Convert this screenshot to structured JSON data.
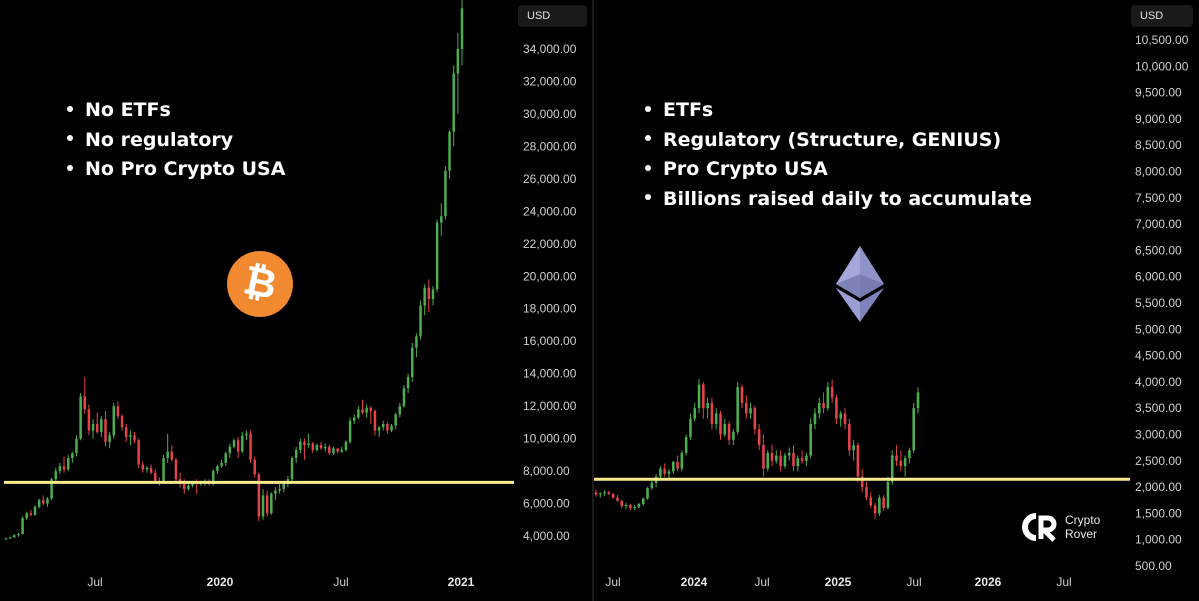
{
  "chart_data": [
    {
      "type": "candlestick",
      "name": "BTC",
      "currency": "USD",
      "yticks": [
        4000,
        6000,
        8000,
        10000,
        12000,
        14000,
        16000,
        18000,
        20000,
        22000,
        24000,
        26000,
        28000,
        30000,
        32000,
        34000
      ],
      "ytick_labels": [
        "4,000.00",
        "6,000.00",
        "8,000.00",
        "10,000.00",
        "12,000.00",
        "14,000.00",
        "16,000.00",
        "18,000.00",
        "20,000.00",
        "22,000.00",
        "24,000.00",
        "26,000.00",
        "28,000.00",
        "30,000.00",
        "32,000.00",
        "34,000.00"
      ],
      "ylim": [
        3000,
        36700
      ],
      "x_labels": [
        {
          "label": "Jul",
          "bold": false
        },
        {
          "label": "2020",
          "bold": true
        },
        {
          "label": "Jul",
          "bold": false
        },
        {
          "label": "2021",
          "bold": true
        }
      ],
      "horizontal_line": 7300,
      "candles": [
        [
          3800,
          3900,
          3750,
          3860
        ],
        [
          3860,
          3950,
          3800,
          3920
        ],
        [
          3920,
          4100,
          3880,
          4050
        ],
        [
          4050,
          4200,
          3950,
          4120
        ],
        [
          4120,
          5200,
          4100,
          5100
        ],
        [
          5100,
          5500,
          5000,
          5400
        ],
        [
          5400,
          5600,
          5200,
          5300
        ],
        [
          5300,
          5900,
          5250,
          5800
        ],
        [
          5800,
          6300,
          5700,
          6200
        ],
        [
          6200,
          6500,
          5900,
          6000
        ],
        [
          6000,
          6400,
          5800,
          6300
        ],
        [
          6300,
          7600,
          6200,
          7500
        ],
        [
          7500,
          8200,
          7300,
          8000
        ],
        [
          8000,
          8500,
          7800,
          8300
        ],
        [
          8300,
          8900,
          7900,
          8100
        ],
        [
          8100,
          9000,
          8000,
          8800
        ],
        [
          8800,
          9200,
          8500,
          9100
        ],
        [
          9100,
          10200,
          8900,
          10000
        ],
        [
          10000,
          12800,
          9900,
          12600
        ],
        [
          12600,
          13800,
          11500,
          11800
        ],
        [
          11800,
          12100,
          10200,
          10500
        ],
        [
          10500,
          11200,
          10000,
          10900
        ],
        [
          10900,
          11600,
          10300,
          10400
        ],
        [
          10400,
          11400,
          10100,
          11200
        ],
        [
          11200,
          11700,
          9500,
          9800
        ],
        [
          9800,
          10400,
          9400,
          10200
        ],
        [
          10200,
          12200,
          10000,
          12000
        ],
        [
          12000,
          12300,
          11200,
          11400
        ],
        [
          11400,
          11500,
          10500,
          10700
        ],
        [
          10700,
          10900,
          9800,
          10100
        ],
        [
          10100,
          10500,
          9600,
          10200
        ],
        [
          10200,
          10400,
          9700,
          9900
        ],
        [
          9900,
          10000,
          8200,
          8400
        ],
        [
          8400,
          8600,
          7900,
          8100
        ],
        [
          8100,
          8300,
          7900,
          8200
        ],
        [
          8200,
          8400,
          7800,
          7900
        ],
        [
          7900,
          8100,
          7300,
          7400
        ],
        [
          7400,
          7600,
          7100,
          7300
        ],
        [
          7300,
          9000,
          7200,
          8800
        ],
        [
          8800,
          10300,
          8500,
          9200
        ],
        [
          9200,
          9600,
          8600,
          8700
        ],
        [
          8700,
          8800,
          7300,
          7500
        ],
        [
          7500,
          7900,
          7000,
          7200
        ],
        [
          7200,
          7500,
          6600,
          6900
        ],
        [
          6900,
          7300,
          6800,
          7100
        ],
        [
          7100,
          7400,
          7000,
          7300
        ],
        [
          7300,
          7500,
          6600,
          7200
        ],
        [
          7200,
          7400,
          7100,
          7300
        ],
        [
          7300,
          7500,
          7100,
          7400
        ],
        [
          7400,
          7500,
          7100,
          7200
        ],
        [
          7200,
          8100,
          7100,
          8000
        ],
        [
          8000,
          8400,
          7800,
          8300
        ],
        [
          8300,
          8700,
          8200,
          8500
        ],
        [
          8500,
          9200,
          8300,
          9100
        ],
        [
          9100,
          9700,
          8800,
          9500
        ],
        [
          9500,
          10000,
          9400,
          9900
        ],
        [
          9900,
          10100,
          8800,
          9200
        ],
        [
          9200,
          10400,
          9100,
          10200
        ],
        [
          10200,
          10500,
          9900,
          10300
        ],
        [
          10300,
          10500,
          8500,
          8700
        ],
        [
          8700,
          8900,
          7600,
          7800
        ],
        [
          7800,
          7900,
          4900,
          5200
        ],
        [
          5200,
          6900,
          5000,
          6500
        ],
        [
          6500,
          6800,
          5200,
          5400
        ],
        [
          5400,
          6700,
          5300,
          6600
        ],
        [
          6600,
          7000,
          6200,
          6800
        ],
        [
          6800,
          7200,
          6600,
          6900
        ],
        [
          6900,
          7400,
          6700,
          7300
        ],
        [
          7300,
          7700,
          7000,
          7500
        ],
        [
          7500,
          8900,
          7300,
          8800
        ],
        [
          8800,
          9500,
          8500,
          9300
        ],
        [
          9300,
          10000,
          9100,
          9800
        ],
        [
          9800,
          10000,
          8700,
          9600
        ],
        [
          9600,
          10300,
          9400,
          9700
        ],
        [
          9700,
          9800,
          9100,
          9300
        ],
        [
          9300,
          9700,
          9200,
          9600
        ],
        [
          9600,
          9800,
          9300,
          9400
        ],
        [
          9400,
          9700,
          9200,
          9500
        ],
        [
          9500,
          9600,
          9000,
          9100
        ],
        [
          9100,
          9500,
          9000,
          9400
        ],
        [
          9400,
          9300,
          9100,
          9200
        ],
        [
          9200,
          9500,
          9100,
          9300
        ],
        [
          9300,
          9900,
          9200,
          9800
        ],
        [
          9800,
          11300,
          9700,
          11100
        ],
        [
          11100,
          11500,
          10900,
          11300
        ],
        [
          11300,
          12000,
          11200,
          11800
        ],
        [
          11800,
          12400,
          11500,
          11600
        ],
        [
          11600,
          12100,
          11300,
          11900
        ],
        [
          11900,
          12000,
          10900,
          11700
        ],
        [
          11700,
          11800,
          10200,
          10500
        ],
        [
          10500,
          10800,
          10100,
          10700
        ],
        [
          10700,
          11100,
          10500,
          10900
        ],
        [
          10900,
          11000,
          10300,
          10500
        ],
        [
          10500,
          10900,
          10400,
          10800
        ],
        [
          10800,
          11600,
          10600,
          11500
        ],
        [
          11500,
          12200,
          11300,
          12000
        ],
        [
          12000,
          13300,
          11900,
          13100
        ],
        [
          13100,
          14000,
          12800,
          13800
        ],
        [
          13800,
          15900,
          13500,
          15600
        ],
        [
          15600,
          16500,
          15000,
          16300
        ],
        [
          16300,
          18500,
          16100,
          18200
        ],
        [
          18200,
          19500,
          17600,
          19300
        ],
        [
          19300,
          19800,
          17800,
          18600
        ],
        [
          18600,
          19400,
          18200,
          19200
        ],
        [
          19200,
          23500,
          19000,
          23300
        ],
        [
          23300,
          24500,
          22500,
          23700
        ],
        [
          23700,
          26800,
          23500,
          26500
        ],
        [
          26500,
          29000,
          26000,
          28900
        ],
        [
          28900,
          33000,
          28000,
          32500
        ],
        [
          32500,
          35000,
          30000,
          34000
        ],
        [
          34000,
          37000,
          33000,
          36500
        ]
      ]
    },
    {
      "type": "candlestick",
      "name": "ETH",
      "currency": "USD",
      "yticks": [
        500,
        1000,
        1500,
        2000,
        2500,
        3000,
        3500,
        4000,
        4500,
        5000,
        5500,
        6000,
        6500,
        7000,
        7500,
        8000,
        8500,
        9000,
        9500,
        10000,
        10500
      ],
      "ytick_labels": [
        "500.00",
        "1,000.00",
        "1,500.00",
        "2,000.00",
        "2,500.00",
        "3,000.00",
        "3,500.00",
        "4,000.00",
        "4,500.00",
        "5,000.00",
        "5,500.00",
        "6,000.00",
        "6,500.00",
        "7,000.00",
        "7,500.00",
        "8,000.00",
        "8,500.00",
        "9,000.00",
        "9,500.00",
        "10,000.00",
        "10,500.00"
      ],
      "ylim": [
        300,
        10900
      ],
      "x_labels": [
        {
          "label": "Jul",
          "bold": false
        },
        {
          "label": "2024",
          "bold": true
        },
        {
          "label": "Jul",
          "bold": false
        },
        {
          "label": "2025",
          "bold": true
        },
        {
          "label": "Jul",
          "bold": false
        },
        {
          "label": "2026",
          "bold": true
        },
        {
          "label": "Jul",
          "bold": false
        }
      ],
      "horizontal_line": 2150,
      "candles": [
        [
          1900,
          1950,
          1820,
          1860
        ],
        [
          1860,
          1900,
          1800,
          1880
        ],
        [
          1880,
          1950,
          1830,
          1900
        ],
        [
          1900,
          1930,
          1850,
          1870
        ],
        [
          1870,
          1890,
          1780,
          1800
        ],
        [
          1800,
          1850,
          1720,
          1740
        ],
        [
          1740,
          1760,
          1600,
          1640
        ],
        [
          1640,
          1700,
          1580,
          1660
        ],
        [
          1660,
          1680,
          1560,
          1600
        ],
        [
          1600,
          1660,
          1560,
          1620
        ],
        [
          1620,
          1700,
          1600,
          1680
        ],
        [
          1680,
          1800,
          1640,
          1780
        ],
        [
          1780,
          2000,
          1760,
          1980
        ],
        [
          1980,
          2150,
          1950,
          2080
        ],
        [
          2080,
          2250,
          2000,
          2200
        ],
        [
          2200,
          2400,
          2150,
          2350
        ],
        [
          2350,
          2450,
          2200,
          2250
        ],
        [
          2250,
          2350,
          2150,
          2300
        ],
        [
          2300,
          2500,
          2250,
          2480
        ],
        [
          2480,
          2600,
          2300,
          2350
        ],
        [
          2350,
          2700,
          2300,
          2650
        ],
        [
          2650,
          3000,
          2600,
          2950
        ],
        [
          2950,
          3400,
          2900,
          3300
        ],
        [
          3300,
          3600,
          3250,
          3500
        ],
        [
          3500,
          4050,
          3400,
          3950
        ],
        [
          3950,
          4000,
          3300,
          3500
        ],
        [
          3500,
          3700,
          3300,
          3600
        ],
        [
          3600,
          3700,
          3100,
          3200
        ],
        [
          3200,
          3500,
          3100,
          3400
        ],
        [
          3400,
          3450,
          2900,
          3000
        ],
        [
          3000,
          3300,
          2950,
          3200
        ],
        [
          3200,
          3250,
          2800,
          2900
        ],
        [
          2900,
          3100,
          2800,
          3050
        ],
        [
          3050,
          4000,
          3000,
          3900
        ],
        [
          3900,
          3950,
          3500,
          3600
        ],
        [
          3600,
          3750,
          3300,
          3400
        ],
        [
          3400,
          3600,
          3300,
          3500
        ],
        [
          3500,
          3550,
          3000,
          3100
        ],
        [
          3100,
          3200,
          2700,
          2800
        ],
        [
          2800,
          3000,
          2200,
          2350
        ],
        [
          2350,
          2700,
          2300,
          2650
        ],
        [
          2650,
          2800,
          2400,
          2500
        ],
        [
          2500,
          2700,
          2450,
          2600
        ],
        [
          2600,
          2700,
          2300,
          2400
        ],
        [
          2400,
          2650,
          2350,
          2600
        ],
        [
          2600,
          2750,
          2500,
          2650
        ],
        [
          2650,
          2800,
          2300,
          2400
        ],
        [
          2400,
          2600,
          2300,
          2550
        ],
        [
          2550,
          2700,
          2450,
          2500
        ],
        [
          2500,
          2650,
          2400,
          2600
        ],
        [
          2600,
          3300,
          2550,
          3200
        ],
        [
          3200,
          3500,
          3100,
          3400
        ],
        [
          3400,
          3700,
          3300,
          3600
        ],
        [
          3600,
          3800,
          3400,
          3500
        ],
        [
          3500,
          4000,
          3450,
          3900
        ],
        [
          3900,
          4050,
          3600,
          3700
        ],
        [
          3700,
          3750,
          3200,
          3300
        ],
        [
          3300,
          3450,
          3150,
          3400
        ],
        [
          3400,
          3500,
          3100,
          3200
        ],
        [
          3200,
          3300,
          2600,
          2700
        ],
        [
          2700,
          2900,
          2500,
          2800
        ],
        [
          2800,
          2850,
          2100,
          2200
        ],
        [
          2200,
          2350,
          1900,
          2000
        ],
        [
          2000,
          2100,
          1750,
          1800
        ],
        [
          1800,
          1900,
          1600,
          1650
        ],
        [
          1650,
          1700,
          1400,
          1500
        ],
        [
          1500,
          1850,
          1450,
          1800
        ],
        [
          1800,
          1850,
          1550,
          1600
        ],
        [
          1600,
          2200,
          1580,
          2100
        ],
        [
          2100,
          2700,
          2050,
          2600
        ],
        [
          2600,
          2800,
          2400,
          2500
        ],
        [
          2500,
          2700,
          2300,
          2400
        ],
        [
          2400,
          2600,
          2200,
          2550
        ],
        [
          2550,
          2750,
          2450,
          2700
        ],
        [
          2700,
          3600,
          2650,
          3500
        ],
        [
          3500,
          3900,
          3400,
          3800
        ]
      ]
    }
  ],
  "left_panel": {
    "currency_label": "USD",
    "bullets": [
      "No ETFs",
      "No regulatory",
      "No Pro Crypto USA"
    ],
    "logo_glyph": "₿",
    "logo_icon": "bitcoin-logo-icon",
    "colors": {
      "up": "#4cae4f",
      "down": "#e2444a",
      "line": "#f7ea8c",
      "logo": "#f0892f"
    }
  },
  "right_panel": {
    "currency_label": "USD",
    "bullets": [
      "ETFs",
      "Regulatory (Structure, GENIUS)",
      "Pro Crypto USA",
      "Billions raised daily to accumulate"
    ],
    "logo_icon": "ethereum-logo-icon",
    "watermark": {
      "line1": "Crypto",
      "line2": "Rover"
    }
  }
}
